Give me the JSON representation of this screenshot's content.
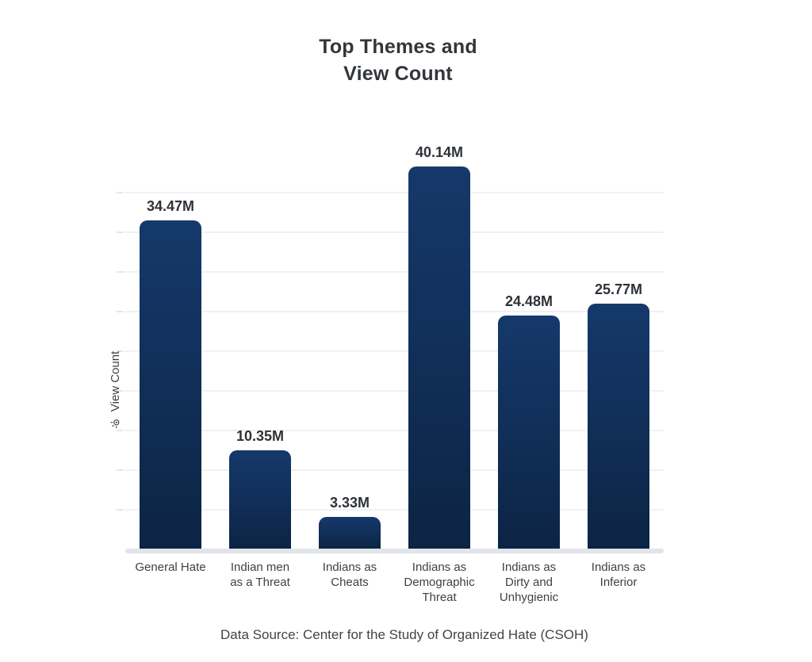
{
  "title": {
    "line1": "Top Themes and",
    "line2": "View Count"
  },
  "y_axis": {
    "label": "View Count",
    "icon": "eye-view-icon"
  },
  "footer": {
    "text": "Data Source: Center for the Study of Organized Hate (CSOH)"
  },
  "colors": {
    "bar_gradient_top": "#15396B",
    "bar_gradient_bottom": "#0C2444",
    "title_text": "#32363B",
    "value_label_text": "#2E3237",
    "axis_text": "#3C4147",
    "gridline": "#EFF1F4",
    "baseline": "#E1E4E8",
    "background": "#FFFFFF"
  },
  "chart_data": {
    "type": "bar",
    "title": "Top Themes and View Count",
    "xlabel": "",
    "ylabel": "View Count",
    "unit": "M",
    "categories": [
      "General Hate",
      "Indian men as a Threat",
      "Indians as Cheats",
      "Indians as Demographic Threat",
      "Indians as Dirty and Unhygienic",
      "Indians as Inferior"
    ],
    "category_lines": [
      [
        "General Hate"
      ],
      [
        "Indian men",
        "as a Threat"
      ],
      [
        "Indians as",
        "Cheats"
      ],
      [
        "Indians as",
        "Demographic",
        "Threat"
      ],
      [
        "Indians as",
        "Dirty and",
        "Unhygienic"
      ],
      [
        "Indians as",
        "Inferior"
      ]
    ],
    "values": [
      34.47,
      10.35,
      3.33,
      40.14,
      24.48,
      25.77
    ],
    "value_labels": [
      "34.47M",
      "10.35M",
      "3.33M",
      "40.14M",
      "24.48M",
      "25.77M"
    ],
    "ylim": [
      0,
      42
    ],
    "grid": "faint horizontal gridlines, no y tick labels",
    "legend": "none",
    "source": "Center for the Study of Organized Hate (CSOH)"
  }
}
